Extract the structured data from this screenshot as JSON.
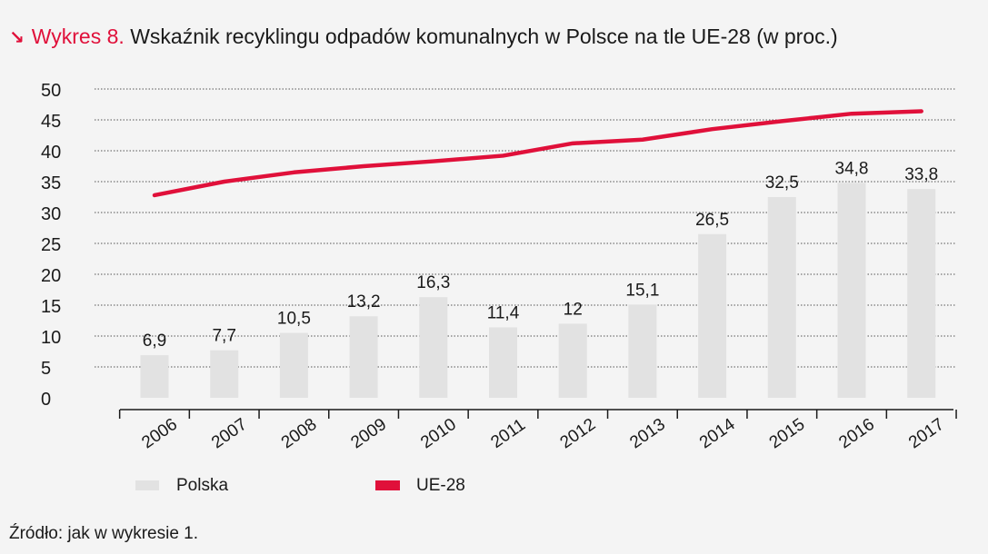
{
  "header": {
    "arrow_symbol": "↘",
    "chart_label": "Wykres 8.",
    "title": "Wskaźnik recyklingu odpadów komunalnych w Polsce na tle UE-28 (w proc.)"
  },
  "footer": {
    "source": "Źródło: jak w wykresie 1."
  },
  "colors": {
    "accent": "#e0103a",
    "bar": "#e2e2e2",
    "grid": "#555555",
    "background": "#f4f4f4"
  },
  "chart_data": {
    "type": "bar",
    "categories": [
      "2006",
      "2007",
      "2008",
      "2009",
      "2010",
      "2011",
      "2012",
      "2013",
      "2014",
      "2015",
      "2016",
      "2017"
    ],
    "series": [
      {
        "name": "Polska",
        "kind": "bar",
        "values": [
          6.9,
          7.7,
          10.5,
          13.2,
          16.3,
          11.4,
          12,
          15.1,
          26.5,
          32.5,
          34.8,
          33.8
        ],
        "labels": [
          "6,9",
          "7,7",
          "10,5",
          "13,2",
          "16,3",
          "11,4",
          "12",
          "15,1",
          "26,5",
          "32,5",
          "34,8",
          "33,8"
        ]
      },
      {
        "name": "UE-28",
        "kind": "line",
        "values": [
          32.8,
          35.0,
          36.5,
          37.5,
          38.3,
          39.2,
          41.2,
          41.8,
          43.5,
          44.8,
          46.0,
          46.4
        ]
      }
    ],
    "ylim": [
      0,
      50
    ],
    "yticks": [
      0,
      5,
      10,
      15,
      20,
      25,
      30,
      35,
      40,
      45,
      50
    ],
    "grid": true,
    "legend_position": "bottom-left"
  }
}
